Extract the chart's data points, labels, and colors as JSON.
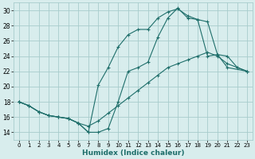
{
  "bg_color": "#d8eded",
  "grid_color": "#a8cccc",
  "line_color": "#1e6e6a",
  "xlabel": "Humidex (Indice chaleur)",
  "xlim": [
    -0.5,
    23.5
  ],
  "ylim": [
    13,
    31
  ],
  "yticks": [
    14,
    16,
    18,
    20,
    22,
    24,
    26,
    28,
    30
  ],
  "xticks": [
    0,
    1,
    2,
    3,
    4,
    5,
    6,
    7,
    8,
    9,
    10,
    11,
    12,
    13,
    14,
    15,
    16,
    17,
    18,
    19,
    20,
    21,
    22,
    23
  ],
  "line1_x": [
    0,
    1,
    2,
    3,
    4,
    5,
    6,
    7,
    8,
    9,
    10,
    11,
    12,
    13,
    14,
    15,
    16,
    17,
    18,
    19,
    20,
    21,
    22,
    23
  ],
  "line1_y": [
    18.0,
    17.5,
    16.7,
    16.2,
    16.0,
    15.8,
    15.2,
    14.8,
    15.5,
    16.5,
    17.5,
    18.5,
    19.5,
    20.5,
    21.5,
    22.5,
    23.0,
    23.5,
    24.0,
    24.5,
    24.0,
    23.0,
    22.5,
    22.0
  ],
  "line2_x": [
    0,
    1,
    2,
    3,
    4,
    5,
    6,
    7,
    8,
    9,
    10,
    11,
    12,
    13,
    14,
    15,
    16,
    17,
    18,
    19,
    20,
    21,
    23
  ],
  "line2_y": [
    18.0,
    17.5,
    16.7,
    16.2,
    16.0,
    15.8,
    15.2,
    14.0,
    20.2,
    22.5,
    25.2,
    26.8,
    27.5,
    27.5,
    29.0,
    29.8,
    30.2,
    29.3,
    28.8,
    24.0,
    24.2,
    22.5,
    22.0
  ],
  "line3_x": [
    0,
    1,
    2,
    3,
    4,
    5,
    6,
    7,
    8,
    9,
    10,
    11,
    12,
    13,
    14,
    15,
    16,
    17,
    18,
    19,
    20,
    21,
    22,
    23
  ],
  "line3_y": [
    18.0,
    17.5,
    16.7,
    16.2,
    16.0,
    15.8,
    15.2,
    14.0,
    14.0,
    14.5,
    18.0,
    22.0,
    22.5,
    23.2,
    26.5,
    29.0,
    30.3,
    29.0,
    28.8,
    28.5,
    24.2,
    24.0,
    22.5,
    22.0
  ]
}
